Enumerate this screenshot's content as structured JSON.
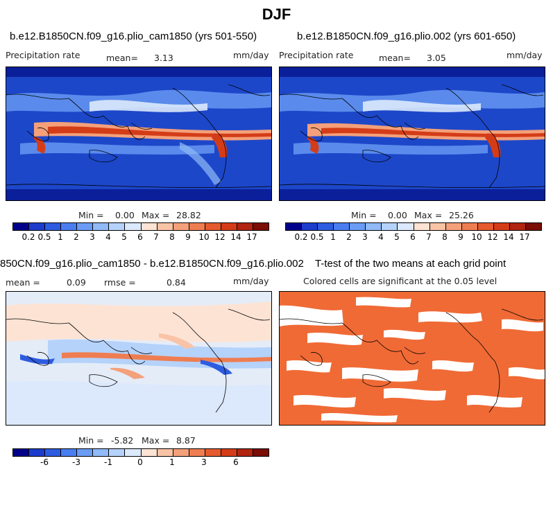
{
  "page_title": "DJF",
  "panels": [
    {
      "title": "b.e12.B1850CN.f09_g16.plio_cam1850 (yrs 501-550)",
      "left_label": "Precipitation rate",
      "mean_label": "mean=",
      "mean_value": "3.13",
      "units": "mm/day",
      "min_label": "Min =",
      "min_value": "0.00",
      "max_label": "Max =",
      "max_value": "28.82"
    },
    {
      "title": "b.e12.B1850CN.f09_g16.plio.002 (yrs 601-650)",
      "left_label": "Precipitation rate",
      "mean_label": "mean=",
      "mean_value": "3.05",
      "units": "mm/day",
      "min_label": "Min =",
      "min_value": "0.00",
      "max_label": "Max =",
      "max_value": "25.26"
    },
    {
      "title": "850CN.f09_g16.plio_cam1850 - b.e12.B1850CN.f09_g16.plio.002",
      "mean_label": "mean =",
      "mean_value": "0.09",
      "rmse_label": "rmse =",
      "rmse_value": "0.84",
      "units": "mm/day",
      "min_label": "Min =",
      "min_value": "-5.82",
      "max_label": "Max =",
      "max_value": "8.87"
    },
    {
      "title": "T-test of the two means at each grid point",
      "subtitle": "Colored cells are significant at the 0.05 level"
    }
  ],
  "colorbar_precip": {
    "colors": [
      "#00008b",
      "#1c3ccc",
      "#2e5ce0",
      "#4a7ef0",
      "#6a9cf5",
      "#90baf8",
      "#b5d2fa",
      "#dce9fc",
      "#fde3d4",
      "#f9c3a6",
      "#f4a07a",
      "#ee7d51",
      "#e55a2f",
      "#d43c18",
      "#b02410",
      "#7a0d05"
    ],
    "labels": [
      "0.2",
      "0.5",
      "1",
      "2",
      "3",
      "4",
      "5",
      "6",
      "7",
      "8",
      "9",
      "10",
      "12",
      "14",
      "17"
    ]
  },
  "colorbar_diff": {
    "colors": [
      "#00008b",
      "#1c3ccc",
      "#2e5ce0",
      "#4a7ef0",
      "#6a9cf5",
      "#90baf8",
      "#b5d2fa",
      "#dce9fc",
      "#fde3d4",
      "#f9c3a6",
      "#f4a07a",
      "#ee7d51",
      "#e55a2f",
      "#d43c18",
      "#b02410",
      "#7a0d05"
    ],
    "labels": [
      "-6",
      "-3",
      "-1",
      "0",
      "1",
      "3",
      "6"
    ]
  },
  "colors": {
    "significant": "#f06a35",
    "ocean_dark": "#1f4fd8",
    "diff_background": "#e8eef7"
  }
}
